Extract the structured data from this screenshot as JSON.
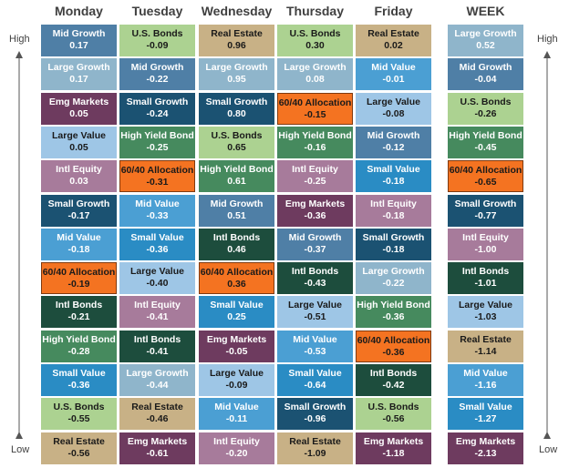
{
  "axis": {
    "high": "High",
    "low": "Low"
  },
  "columns": [
    {
      "header": "Monday",
      "cells": [
        {
          "name": "Mid Growth",
          "value": "0.17",
          "color": "#4f7fa6"
        },
        {
          "name": "Large Growth",
          "value": "0.17",
          "color": "#8fb5cb"
        },
        {
          "name": "Emg Markets",
          "value": "0.05",
          "color": "#6e3b5f"
        },
        {
          "name": "Large Value",
          "value": "0.05",
          "color": "#9ec6e6",
          "ink": "#1a1a1a"
        },
        {
          "name": "Intl Equity",
          "value": "0.03",
          "color": "#a77b9b"
        },
        {
          "name": "Small Growth",
          "value": "-0.17",
          "color": "#1b5272"
        },
        {
          "name": "Mid Value",
          "value": "-0.18",
          "color": "#4b9fd3"
        },
        {
          "name": "60/40 Allocation",
          "value": "-0.19",
          "color": "#f47321",
          "ink": "#1a1a1a",
          "border": "#7f3a10"
        },
        {
          "name": "Intl Bonds",
          "value": "-0.21",
          "color": "#1d4d3d"
        },
        {
          "name": "High Yield Bond",
          "value": "-0.28",
          "color": "#468a5e"
        },
        {
          "name": "Small Value",
          "value": "-0.36",
          "color": "#2a8cc4"
        },
        {
          "name": "U.S. Bonds",
          "value": "-0.55",
          "color": "#acd291",
          "ink": "#1a1a1a"
        },
        {
          "name": "Real Estate",
          "value": "-0.56",
          "color": "#c8b186",
          "ink": "#1a1a1a"
        }
      ]
    },
    {
      "header": "Tuesday",
      "cells": [
        {
          "name": "U.S. Bonds",
          "value": "-0.09",
          "color": "#acd291",
          "ink": "#1a1a1a"
        },
        {
          "name": "Mid Growth",
          "value": "-0.22",
          "color": "#4f7fa6"
        },
        {
          "name": "Small Growth",
          "value": "-0.24",
          "color": "#1b5272"
        },
        {
          "name": "High Yield Bond",
          "value": "-0.25",
          "color": "#468a5e"
        },
        {
          "name": "60/40 Allocation",
          "value": "-0.31",
          "color": "#f47321",
          "ink": "#1a1a1a",
          "border": "#7f3a10"
        },
        {
          "name": "Mid Value",
          "value": "-0.33",
          "color": "#4b9fd3"
        },
        {
          "name": "Small Value",
          "value": "-0.36",
          "color": "#2a8cc4"
        },
        {
          "name": "Large Value",
          "value": "-0.40",
          "color": "#9ec6e6",
          "ink": "#1a1a1a"
        },
        {
          "name": "Intl Equity",
          "value": "-0.41",
          "color": "#a77b9b"
        },
        {
          "name": "Intl Bonds",
          "value": "-0.41",
          "color": "#1d4d3d"
        },
        {
          "name": "Large Growth",
          "value": "-0.44",
          "color": "#8fb5cb"
        },
        {
          "name": "Real Estate",
          "value": "-0.46",
          "color": "#c8b186",
          "ink": "#1a1a1a"
        },
        {
          "name": "Emg Markets",
          "value": "-0.61",
          "color": "#6e3b5f"
        }
      ]
    },
    {
      "header": "Wednesday",
      "cells": [
        {
          "name": "Real Estate",
          "value": "0.96",
          "color": "#c8b186",
          "ink": "#1a1a1a"
        },
        {
          "name": "Large Growth",
          "value": "0.95",
          "color": "#8fb5cb"
        },
        {
          "name": "Small Growth",
          "value": "0.80",
          "color": "#1b5272"
        },
        {
          "name": "U.S. Bonds",
          "value": "0.65",
          "color": "#acd291",
          "ink": "#1a1a1a"
        },
        {
          "name": "High Yield Bond",
          "value": "0.61",
          "color": "#468a5e"
        },
        {
          "name": "Mid Growth",
          "value": "0.51",
          "color": "#4f7fa6"
        },
        {
          "name": "Intl Bonds",
          "value": "0.46",
          "color": "#1d4d3d"
        },
        {
          "name": "60/40 Allocation",
          "value": "0.36",
          "color": "#f47321",
          "ink": "#1a1a1a",
          "border": "#7f3a10"
        },
        {
          "name": "Small Value",
          "value": "0.25",
          "color": "#2a8cc4"
        },
        {
          "name": "Emg Markets",
          "value": "-0.05",
          "color": "#6e3b5f"
        },
        {
          "name": "Large Value",
          "value": "-0.09",
          "color": "#9ec6e6",
          "ink": "#1a1a1a"
        },
        {
          "name": "Mid Value",
          "value": "-0.11",
          "color": "#4b9fd3"
        },
        {
          "name": "Intl Equity",
          "value": "-0.20",
          "color": "#a77b9b"
        }
      ]
    },
    {
      "header": "Thursday",
      "cells": [
        {
          "name": "U.S. Bonds",
          "value": "0.30",
          "color": "#acd291",
          "ink": "#1a1a1a"
        },
        {
          "name": "Large Growth",
          "value": "0.08",
          "color": "#8fb5cb"
        },
        {
          "name": "60/40 Allocation",
          "value": "-0.15",
          "color": "#f47321",
          "ink": "#1a1a1a",
          "border": "#7f3a10"
        },
        {
          "name": "High Yield Bond",
          "value": "-0.16",
          "color": "#468a5e"
        },
        {
          "name": "Intl Equity",
          "value": "-0.25",
          "color": "#a77b9b"
        },
        {
          "name": "Emg Markets",
          "value": "-0.36",
          "color": "#6e3b5f"
        },
        {
          "name": "Mid Growth",
          "value": "-0.37",
          "color": "#4f7fa6"
        },
        {
          "name": "Intl Bonds",
          "value": "-0.43",
          "color": "#1d4d3d"
        },
        {
          "name": "Large Value",
          "value": "-0.51",
          "color": "#9ec6e6",
          "ink": "#1a1a1a"
        },
        {
          "name": "Mid Value",
          "value": "-0.53",
          "color": "#4b9fd3"
        },
        {
          "name": "Small Value",
          "value": "-0.64",
          "color": "#2a8cc4"
        },
        {
          "name": "Small Growth",
          "value": "-0.96",
          "color": "#1b5272"
        },
        {
          "name": "Real Estate",
          "value": "-1.09",
          "color": "#c8b186",
          "ink": "#1a1a1a"
        }
      ]
    },
    {
      "header": "Friday",
      "cells": [
        {
          "name": "Real Estate",
          "value": "0.02",
          "color": "#c8b186",
          "ink": "#1a1a1a"
        },
        {
          "name": "Mid Value",
          "value": "-0.01",
          "color": "#4b9fd3"
        },
        {
          "name": "Large Value",
          "value": "-0.08",
          "color": "#9ec6e6",
          "ink": "#1a1a1a"
        },
        {
          "name": "Mid Growth",
          "value": "-0.12",
          "color": "#4f7fa6"
        },
        {
          "name": "Small Value",
          "value": "-0.18",
          "color": "#2a8cc4"
        },
        {
          "name": "Intl Equity",
          "value": "-0.18",
          "color": "#a77b9b"
        },
        {
          "name": "Small Growth",
          "value": "-0.18",
          "color": "#1b5272"
        },
        {
          "name": "Large Growth",
          "value": "-0.22",
          "color": "#8fb5cb"
        },
        {
          "name": "High Yield Bond",
          "value": "-0.36",
          "color": "#468a5e"
        },
        {
          "name": "60/40 Allocation",
          "value": "-0.36",
          "color": "#f47321",
          "ink": "#1a1a1a",
          "border": "#7f3a10"
        },
        {
          "name": "Intl Bonds",
          "value": "-0.42",
          "color": "#1d4d3d"
        },
        {
          "name": "U.S. Bonds",
          "value": "-0.56",
          "color": "#acd291",
          "ink": "#1a1a1a"
        },
        {
          "name": "Emg Markets",
          "value": "-1.18",
          "color": "#6e3b5f"
        }
      ]
    },
    {
      "header": "WEEK",
      "cells": [
        {
          "name": "Large Growth",
          "value": "0.52",
          "color": "#8fb5cb"
        },
        {
          "name": "Mid Growth",
          "value": "-0.04",
          "color": "#4f7fa6"
        },
        {
          "name": "U.S. Bonds",
          "value": "-0.26",
          "color": "#acd291",
          "ink": "#1a1a1a"
        },
        {
          "name": "High Yield Bond",
          "value": "-0.45",
          "color": "#468a5e"
        },
        {
          "name": "60/40 Allocation",
          "value": "-0.65",
          "color": "#f47321",
          "ink": "#1a1a1a",
          "border": "#7f3a10"
        },
        {
          "name": "Small Growth",
          "value": "-0.77",
          "color": "#1b5272"
        },
        {
          "name": "Intl Equity",
          "value": "-1.00",
          "color": "#a77b9b"
        },
        {
          "name": "Intl Bonds",
          "value": "-1.01",
          "color": "#1d4d3d"
        },
        {
          "name": "Large Value",
          "value": "-1.03",
          "color": "#9ec6e6",
          "ink": "#1a1a1a"
        },
        {
          "name": "Real Estate",
          "value": "-1.14",
          "color": "#c8b186",
          "ink": "#1a1a1a"
        },
        {
          "name": "Mid Value",
          "value": "-1.16",
          "color": "#4b9fd3"
        },
        {
          "name": "Small Value",
          "value": "-1.27",
          "color": "#2a8cc4"
        },
        {
          "name": "Emg Markets",
          "value": "-2.13",
          "color": "#6e3b5f"
        }
      ]
    }
  ]
}
